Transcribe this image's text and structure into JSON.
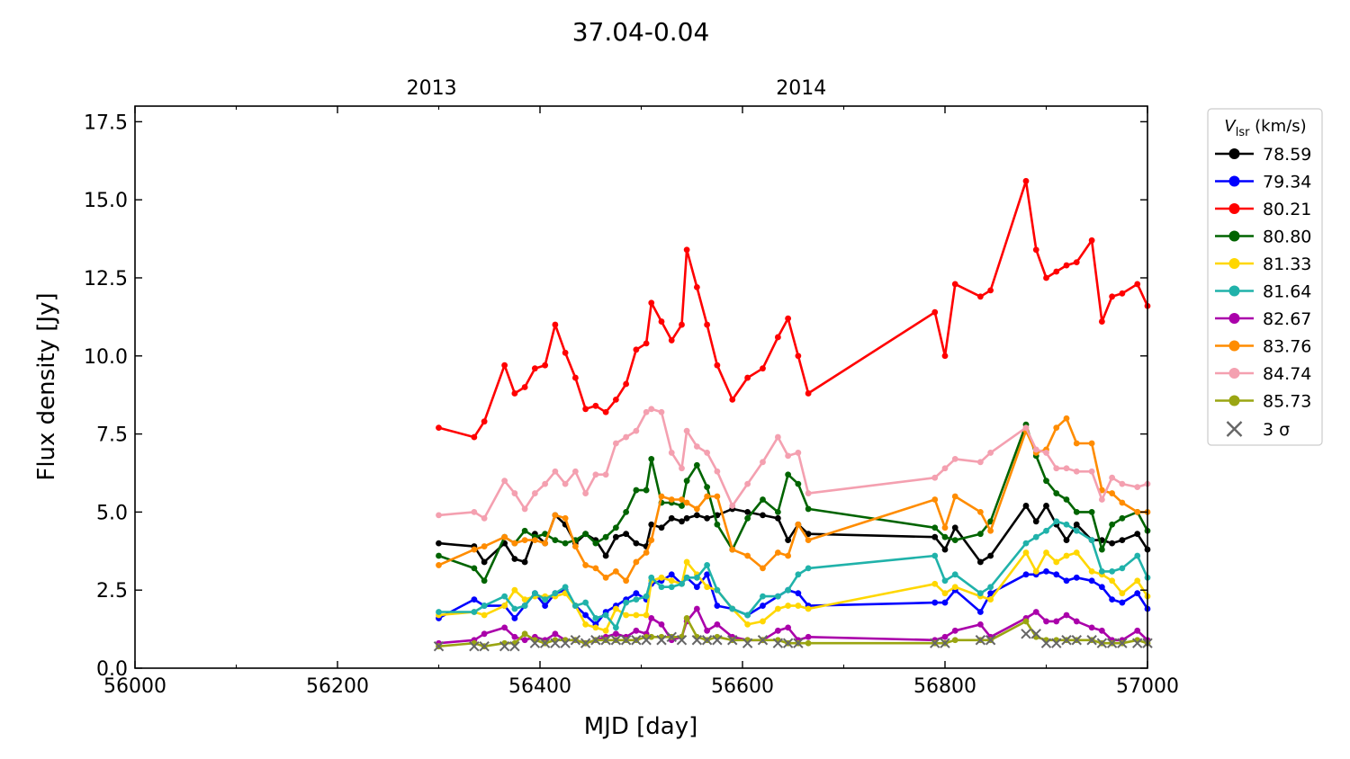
{
  "chart_data": {
    "type": "line",
    "title": "37.04-0.04",
    "xlabel": "MJD [day]",
    "ylabel": "Flux density [Jy]",
    "xlim": [
      56000,
      57000
    ],
    "ylim": [
      0,
      18
    ],
    "x_ticks": [
      56000,
      56200,
      56400,
      56600,
      56800,
      57000
    ],
    "y_ticks": [
      0.0,
      2.5,
      5.0,
      7.5,
      10.0,
      12.5,
      15.0,
      17.5
    ],
    "y_tick_labels": [
      "0.0",
      "2.5",
      "5.0",
      "7.5",
      "10.0",
      "12.5",
      "15.0",
      "17.5"
    ],
    "top_axis": {
      "ticks": [
        56293,
        56658
      ],
      "labels": [
        "2013",
        "2014"
      ]
    },
    "grid": false,
    "legend": {
      "position": "outside-right",
      "title_main": "V",
      "title_sub": "lsr",
      "title_unit": " (km/s)",
      "sigma_label": "3 σ"
    },
    "sigma_color": "#666666",
    "x": [
      56300,
      56335,
      56345,
      56365,
      56375,
      56385,
      56395,
      56405,
      56415,
      56425,
      56435,
      56445,
      56455,
      56465,
      56475,
      56485,
      56495,
      56505,
      56510,
      56520,
      56530,
      56540,
      56545,
      56555,
      56565,
      56575,
      56590,
      56605,
      56620,
      56635,
      56645,
      56655,
      56665,
      56790,
      56800,
      56810,
      56835,
      56845,
      56880,
      56890,
      56900,
      56910,
      56920,
      56930,
      56945,
      56955,
      56965,
      56975,
      56990,
      57000
    ],
    "series": [
      {
        "name": "78.59",
        "color": "#000000",
        "values": [
          4.0,
          3.9,
          3.4,
          4.0,
          3.5,
          3.4,
          4.3,
          4.0,
          4.9,
          4.6,
          4.0,
          4.3,
          4.1,
          3.6,
          4.2,
          4.3,
          4.0,
          3.9,
          4.6,
          4.5,
          4.8,
          4.7,
          4.8,
          4.9,
          4.8,
          4.9,
          5.1,
          5.0,
          4.9,
          4.8,
          4.1,
          4.6,
          4.3,
          4.2,
          3.8,
          4.5,
          3.4,
          3.6,
          5.2,
          4.7,
          5.2,
          4.6,
          4.1,
          4.6,
          4.1,
          4.1,
          4.0,
          4.1,
          4.3,
          3.8
        ]
      },
      {
        "name": "79.34",
        "color": "#0000ff",
        "values": [
          1.6,
          2.2,
          2.0,
          2.0,
          1.6,
          2.0,
          2.4,
          2.0,
          2.4,
          2.5,
          2.0,
          1.7,
          1.4,
          1.8,
          2.0,
          2.2,
          2.4,
          2.2,
          2.7,
          2.8,
          3.0,
          2.7,
          2.9,
          2.6,
          3.0,
          2.0,
          1.9,
          1.7,
          2.0,
          2.3,
          2.5,
          2.4,
          2.0,
          2.1,
          2.1,
          2.5,
          1.8,
          2.4,
          3.0,
          3.0,
          3.1,
          3.0,
          2.8,
          2.9,
          2.8,
          2.6,
          2.2,
          2.1,
          2.4,
          1.9
        ]
      },
      {
        "name": "80.21",
        "color": "#ff0000",
        "values": [
          7.7,
          7.4,
          7.9,
          9.7,
          8.8,
          9.0,
          9.6,
          9.7,
          11.0,
          10.1,
          9.3,
          8.3,
          8.4,
          8.2,
          8.6,
          9.1,
          10.2,
          10.4,
          11.7,
          11.1,
          10.5,
          11.0,
          13.4,
          12.2,
          11.0,
          9.7,
          8.6,
          9.3,
          9.6,
          10.6,
          11.2,
          10.0,
          8.8,
          11.4,
          10.0,
          12.3,
          11.9,
          12.1,
          15.6,
          13.4,
          12.5,
          12.7,
          12.9,
          13.0,
          13.7,
          11.1,
          11.9,
          12.0,
          12.3,
          11.6
        ]
      },
      {
        "name": "80.80",
        "color": "#006400",
        "values": [
          3.6,
          3.2,
          2.8,
          4.2,
          4.0,
          4.4,
          4.2,
          4.3,
          4.1,
          4.0,
          4.1,
          4.3,
          4.0,
          4.2,
          4.5,
          5.0,
          5.7,
          5.7,
          6.7,
          5.3,
          5.3,
          5.2,
          6.0,
          6.5,
          5.8,
          4.6,
          3.8,
          4.8,
          5.4,
          5.0,
          6.2,
          5.9,
          5.1,
          4.5,
          4.2,
          4.1,
          4.3,
          4.7,
          7.8,
          6.8,
          6.0,
          5.6,
          5.4,
          5.0,
          5.0,
          3.8,
          4.6,
          4.8,
          5.0,
          4.4
        ]
      },
      {
        "name": "81.33",
        "color": "#ffd700",
        "values": [
          1.7,
          1.8,
          1.7,
          2.0,
          2.5,
          2.2,
          2.3,
          2.3,
          2.3,
          2.4,
          2.0,
          1.4,
          1.3,
          1.2,
          1.9,
          1.7,
          1.7,
          1.7,
          2.8,
          2.9,
          2.8,
          2.7,
          3.4,
          3.0,
          2.6,
          2.5,
          1.9,
          1.4,
          1.5,
          1.9,
          2.0,
          2.0,
          1.9,
          2.7,
          2.4,
          2.6,
          2.3,
          2.2,
          3.7,
          3.1,
          3.7,
          3.4,
          3.6,
          3.7,
          3.1,
          3.0,
          2.8,
          2.4,
          2.8,
          2.3
        ]
      },
      {
        "name": "81.64",
        "color": "#20b2aa",
        "values": [
          1.8,
          1.8,
          2.0,
          2.3,
          1.9,
          2.0,
          2.4,
          2.2,
          2.4,
          2.6,
          2.0,
          2.1,
          1.6,
          1.7,
          1.3,
          2.1,
          2.2,
          2.3,
          2.9,
          2.6,
          2.6,
          2.7,
          2.9,
          2.9,
          3.3,
          2.5,
          1.9,
          1.7,
          2.3,
          2.3,
          2.5,
          3.0,
          3.2,
          3.6,
          2.8,
          3.0,
          2.4,
          2.6,
          4.0,
          4.2,
          4.4,
          4.7,
          4.6,
          4.4,
          4.1,
          3.1,
          3.1,
          3.2,
          3.6,
          2.9
        ]
      },
      {
        "name": "82.67",
        "color": "#aa00aa",
        "values": [
          0.8,
          0.9,
          1.1,
          1.3,
          1.0,
          0.9,
          1.0,
          0.9,
          1.1,
          0.9,
          0.9,
          0.8,
          0.9,
          1.0,
          1.1,
          1.0,
          1.2,
          1.1,
          1.6,
          1.4,
          0.9,
          1.0,
          1.5,
          1.9,
          1.2,
          1.4,
          1.0,
          0.9,
          0.9,
          1.2,
          1.3,
          0.9,
          1.0,
          0.9,
          1.0,
          1.2,
          1.4,
          1.0,
          1.6,
          1.8,
          1.5,
          1.5,
          1.7,
          1.5,
          1.3,
          1.2,
          0.9,
          0.9,
          1.2,
          0.9
        ]
      },
      {
        "name": "83.76",
        "color": "#ff8c00",
        "values": [
          3.3,
          3.8,
          3.9,
          4.2,
          4.0,
          4.1,
          4.1,
          4.0,
          4.9,
          4.8,
          3.9,
          3.3,
          3.2,
          2.9,
          3.1,
          2.8,
          3.4,
          3.7,
          4.1,
          5.5,
          5.4,
          5.4,
          5.3,
          5.1,
          5.5,
          5.5,
          3.8,
          3.6,
          3.2,
          3.7,
          3.6,
          4.6,
          4.1,
          5.4,
          4.5,
          5.5,
          5.0,
          4.4,
          7.6,
          6.9,
          7.0,
          7.7,
          8.0,
          7.2,
          7.2,
          5.7,
          5.6,
          5.3,
          5.0,
          5.0
        ]
      },
      {
        "name": "84.74",
        "color": "#f4a0b0",
        "values": [
          4.9,
          5.0,
          4.8,
          6.0,
          5.6,
          5.1,
          5.6,
          5.9,
          6.3,
          5.9,
          6.3,
          5.6,
          6.2,
          6.2,
          7.2,
          7.4,
          7.6,
          8.2,
          8.3,
          8.2,
          6.9,
          6.4,
          7.6,
          7.1,
          6.9,
          6.3,
          5.2,
          5.9,
          6.6,
          7.4,
          6.8,
          6.9,
          5.6,
          6.1,
          6.4,
          6.7,
          6.6,
          6.9,
          7.7,
          7.0,
          6.9,
          6.4,
          6.4,
          6.3,
          6.3,
          5.4,
          6.1,
          5.9,
          5.8,
          5.9
        ]
      },
      {
        "name": "85.73",
        "color": "#9aa512",
        "values": [
          0.7,
          0.8,
          0.7,
          0.8,
          0.8,
          1.1,
          0.9,
          0.8,
          0.9,
          0.9,
          0.9,
          0.8,
          0.9,
          0.9,
          0.9,
          0.9,
          0.9,
          1.0,
          1.0,
          1.0,
          1.0,
          1.0,
          1.6,
          1.0,
          0.9,
          1.0,
          0.9,
          0.9,
          0.9,
          0.9,
          0.8,
          0.8,
          0.8,
          0.8,
          0.8,
          0.9,
          0.9,
          0.9,
          1.5,
          1.0,
          0.9,
          0.9,
          0.9,
          0.9,
          0.9,
          0.8,
          0.8,
          0.8,
          0.9,
          0.8
        ]
      }
    ],
    "sigma_points": [
      {
        "x": 56300,
        "y": 0.7
      },
      {
        "x": 56335,
        "y": 0.7
      },
      {
        "x": 56345,
        "y": 0.7
      },
      {
        "x": 56365,
        "y": 0.7
      },
      {
        "x": 56375,
        "y": 0.7
      },
      {
        "x": 56395,
        "y": 0.8
      },
      {
        "x": 56405,
        "y": 0.8
      },
      {
        "x": 56415,
        "y": 0.8
      },
      {
        "x": 56425,
        "y": 0.8
      },
      {
        "x": 56435,
        "y": 0.9
      },
      {
        "x": 56445,
        "y": 0.8
      },
      {
        "x": 56455,
        "y": 0.9
      },
      {
        "x": 56465,
        "y": 0.9
      },
      {
        "x": 56475,
        "y": 0.9
      },
      {
        "x": 56485,
        "y": 0.9
      },
      {
        "x": 56495,
        "y": 0.9
      },
      {
        "x": 56505,
        "y": 0.9
      },
      {
        "x": 56520,
        "y": 0.9
      },
      {
        "x": 56530,
        "y": 1.0
      },
      {
        "x": 56540,
        "y": 0.9
      },
      {
        "x": 56555,
        "y": 0.9
      },
      {
        "x": 56565,
        "y": 0.9
      },
      {
        "x": 56575,
        "y": 0.9
      },
      {
        "x": 56590,
        "y": 0.9
      },
      {
        "x": 56605,
        "y": 0.8
      },
      {
        "x": 56620,
        "y": 0.9
      },
      {
        "x": 56635,
        "y": 0.8
      },
      {
        "x": 56645,
        "y": 0.8
      },
      {
        "x": 56655,
        "y": 0.8
      },
      {
        "x": 56790,
        "y": 0.8
      },
      {
        "x": 56800,
        "y": 0.8
      },
      {
        "x": 56835,
        "y": 0.9
      },
      {
        "x": 56845,
        "y": 0.9
      },
      {
        "x": 56880,
        "y": 1.1
      },
      {
        "x": 56890,
        "y": 1.1
      },
      {
        "x": 56900,
        "y": 0.8
      },
      {
        "x": 56910,
        "y": 0.8
      },
      {
        "x": 56920,
        "y": 0.9
      },
      {
        "x": 56930,
        "y": 0.9
      },
      {
        "x": 56945,
        "y": 0.9
      },
      {
        "x": 56955,
        "y": 0.8
      },
      {
        "x": 56965,
        "y": 0.8
      },
      {
        "x": 56975,
        "y": 0.8
      },
      {
        "x": 56990,
        "y": 0.8
      },
      {
        "x": 57000,
        "y": 0.8
      }
    ]
  }
}
